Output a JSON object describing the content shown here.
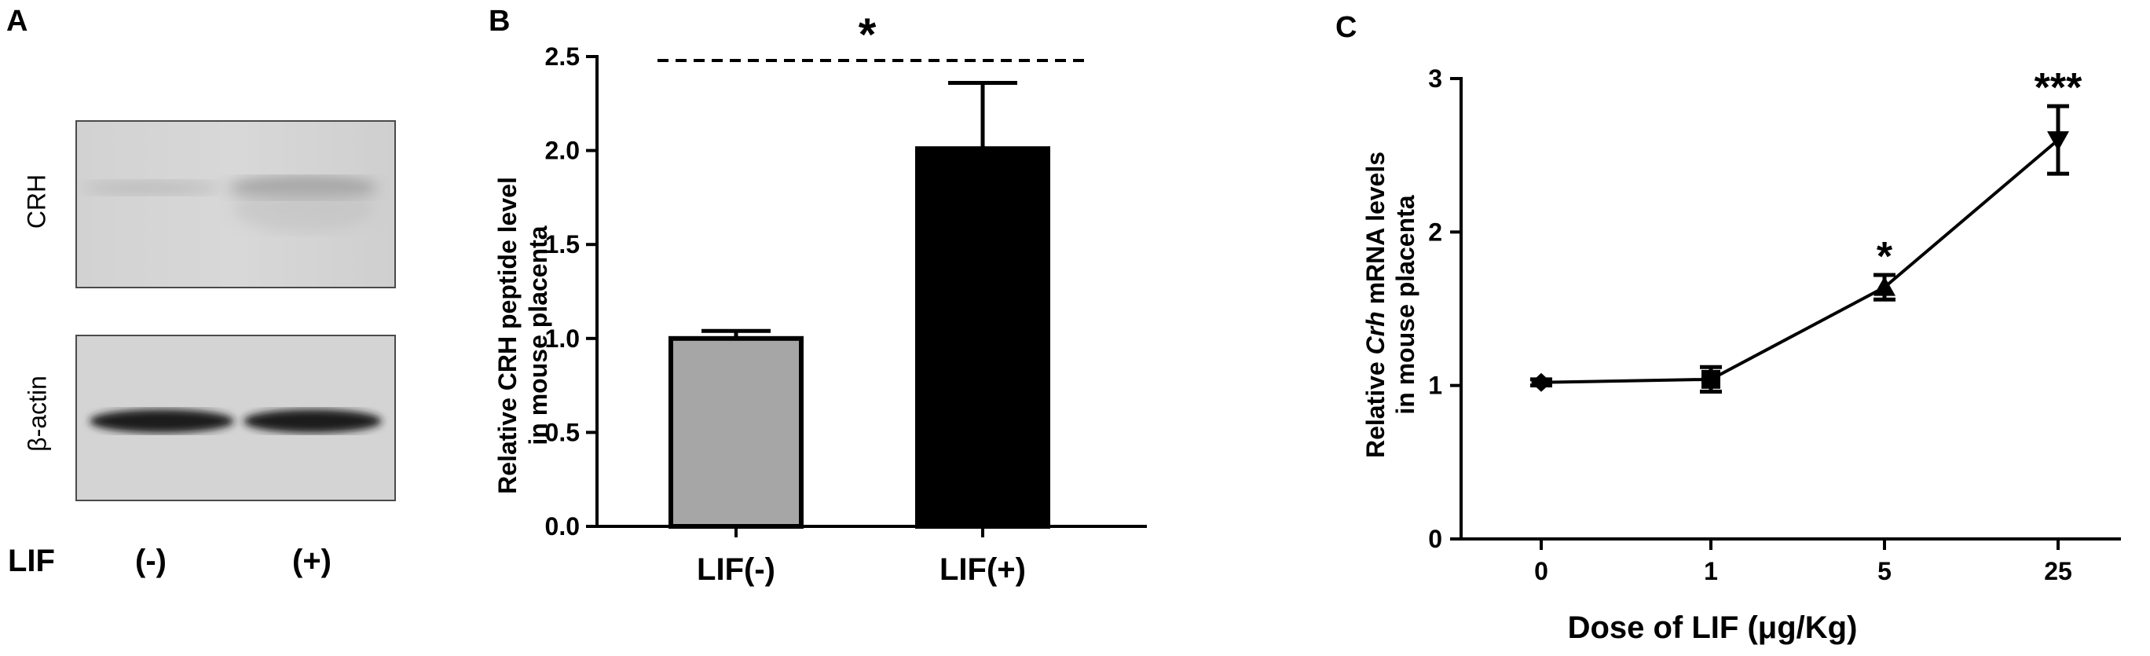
{
  "panel_a": {
    "letter": "A",
    "bands": [
      {
        "label": "CRH"
      },
      {
        "label": "β-actin"
      }
    ],
    "condition_label": "LIF",
    "lanes": [
      "(-)",
      "(+)"
    ]
  },
  "panel_b": {
    "letter": "B"
  },
  "panel_c": {
    "letter": "C"
  },
  "chart_data": [
    {
      "type": "bar",
      "panel": "B",
      "categories": [
        "LIF(-)",
        "LIF(+)"
      ],
      "values": [
        1.0,
        2.01
      ],
      "errors": [
        0.04,
        0.35
      ],
      "bar_colors": [
        "#a6a6a6",
        "#000000"
      ],
      "ylabel": [
        "Relative CRH peptide level",
        "in mouse placenta"
      ],
      "ylim": [
        0,
        2.5
      ],
      "yticks": [
        "0.0",
        "0.5",
        "1.0",
        "1.5",
        "2.0",
        "2.5"
      ],
      "significance": {
        "label": "*",
        "between": [
          "LIF(-)",
          "LIF(+)"
        ],
        "line_style": "dashed"
      }
    },
    {
      "type": "line",
      "panel": "C",
      "x": [
        "0",
        "1",
        "5",
        "25"
      ],
      "values": [
        1.02,
        1.04,
        1.64,
        2.6
      ],
      "errors": [
        0.02,
        0.08,
        0.08,
        0.22
      ],
      "markers": [
        "diamond",
        "square",
        "triangle-up",
        "triangle-down"
      ],
      "significance": [
        "",
        "",
        "*",
        "***"
      ],
      "xlabel": "Dose of LIF (μg/Kg)",
      "ylabel": {
        "line1_prefix": "Relative ",
        "line1_italic": "Crh",
        "line1_suffix": " mRNA levels",
        "line2": "in mouse placenta"
      },
      "ylabel_color": "#3a2412",
      "ylim": [
        0,
        3
      ],
      "yticks": [
        "0",
        "1",
        "2",
        "3"
      ]
    }
  ]
}
